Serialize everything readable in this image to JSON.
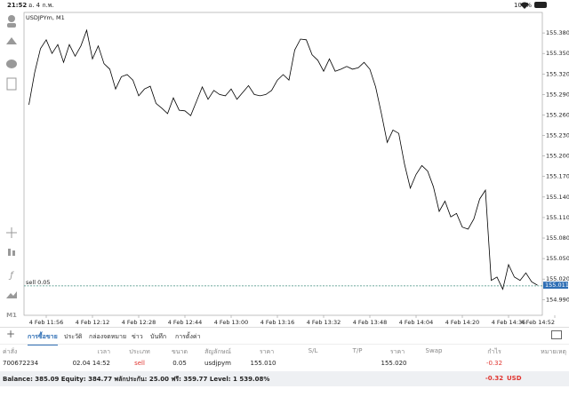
{
  "status_bar": {
    "time": "21:52",
    "date": "อ. 4 ก.พ.",
    "battery": "100%"
  },
  "left_toolbar": {
    "timeframe": "M1"
  },
  "chart_data": {
    "type": "line",
    "title": "USDJPYm, M1",
    "color": "#000000",
    "grid": false,
    "categories": [
      null,
      null,
      null,
      "4 Feb 11:56",
      null,
      null,
      null,
      null,
      null,
      null,
      null,
      "4 Feb 12:12",
      null,
      null,
      null,
      null,
      null,
      null,
      null,
      "4 Feb 12:28",
      null,
      null,
      null,
      null,
      null,
      null,
      null,
      "4 Feb 12:44",
      null,
      null,
      null,
      null,
      null,
      null,
      null,
      "4 Feb 13:00",
      null,
      null,
      null,
      null,
      null,
      null,
      null,
      "4 Feb 13:16",
      null,
      null,
      null,
      null,
      null,
      null,
      null,
      "4 Feb 13:32",
      null,
      null,
      null,
      null,
      null,
      null,
      null,
      "4 Feb 13:48",
      null,
      null,
      null,
      null,
      null,
      null,
      null,
      "4 Feb 14:04",
      null,
      null,
      null,
      null,
      null,
      null,
      null,
      "4 Feb 14:20",
      null,
      null,
      null,
      null,
      null,
      null,
      null,
      "4 Feb 14:36",
      null,
      null,
      null,
      null,
      null,
      null,
      null,
      "4 Feb 14:52"
    ],
    "values": [
      155.275,
      155.322,
      155.357,
      155.37,
      155.35,
      155.363,
      155.337,
      155.363,
      155.346,
      155.361,
      155.384,
      155.342,
      155.361,
      155.335,
      155.327,
      155.298,
      155.316,
      155.319,
      155.311,
      155.288,
      155.298,
      155.302,
      155.277,
      155.27,
      155.262,
      155.285,
      155.267,
      155.266,
      155.259,
      155.28,
      155.301,
      155.283,
      155.296,
      155.29,
      155.288,
      155.298,
      155.283,
      155.293,
      155.303,
      155.29,
      155.288,
      155.29,
      155.296,
      155.311,
      155.319,
      155.311,
      155.355,
      155.371,
      155.37,
      155.348,
      155.34,
      155.324,
      155.342,
      155.324,
      155.327,
      155.331,
      155.327,
      155.329,
      155.337,
      155.327,
      155.301,
      155.262,
      155.22,
      155.238,
      155.233,
      155.188,
      155.153,
      155.173,
      155.186,
      155.178,
      155.155,
      155.119,
      155.134,
      155.111,
      155.116,
      155.096,
      155.093,
      155.108,
      155.137,
      155.15,
      155.018,
      155.023,
      155.005,
      155.041,
      155.023,
      155.018,
      155.029,
      155.016,
      155.011,
      null,
      null,
      null
    ],
    "ylim": [
      154.967,
      155.41
    ],
    "yticks": [
      {
        "value": 155.38,
        "label": "155.380"
      },
      {
        "value": 155.35,
        "label": "155.350"
      },
      {
        "value": 155.32,
        "label": "155.320"
      },
      {
        "value": 155.29,
        "label": "155.290"
      },
      {
        "value": 155.26,
        "label": "155.260"
      },
      {
        "value": 155.23,
        "label": "155.230"
      },
      {
        "value": 155.2,
        "label": "155.200"
      },
      {
        "value": 155.17,
        "label": "155.170"
      },
      {
        "value": 155.14,
        "label": "155.140"
      },
      {
        "value": 155.11,
        "label": "155.110"
      },
      {
        "value": 155.08,
        "label": "155.080"
      },
      {
        "value": 155.05,
        "label": "155.050"
      },
      {
        "value": 155.02,
        "label": "155.020"
      },
      {
        "value": 154.99,
        "label": "154.990"
      }
    ],
    "order_line": {
      "text": "sell 0.05",
      "value": 155.01
    },
    "price_marker": {
      "value": 155.011,
      "label": "155.011"
    }
  },
  "tabs": [
    "การซื้อขาย",
    "ประวัติ",
    "กล่องจดหมาย",
    "ข่าว",
    "บันทึก",
    "การตั้งค่า"
  ],
  "table": {
    "headers": [
      "ค่าสั่ง",
      "เวลา",
      "ประเภท",
      "ขนาด",
      "สัญลักษณ์",
      "ราคา",
      "S/L",
      "T/P",
      "ราคา",
      "Swap",
      "กำไร",
      "หมายเหตุ"
    ],
    "rows": [
      {
        "order": "700672234",
        "time": "02.04 14:52",
        "type": "sell",
        "volume": "0.05",
        "symbol": "usdjpym",
        "price": "155.010",
        "current_price": "155.020",
        "profit": "-0.32"
      }
    ]
  },
  "footer": {
    "summary": "Balance: 385.09 Equity: 384.77 พลักประกัน: 25.00 ฟรี: 359.77 Level: 1 539.08%",
    "profit": "-0.32",
    "currency": "USD"
  }
}
